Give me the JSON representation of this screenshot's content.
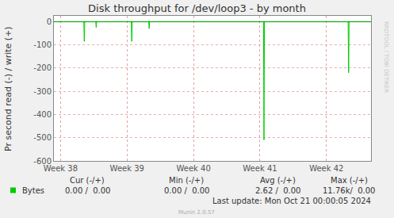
{
  "chart_data": {
    "type": "line",
    "title": "Disk throughput for /dev/loop3 - by month",
    "y_label": "Pr second read (-) / write (+)",
    "x": [
      37.9,
      38.35,
      38.357,
      38.364,
      38.529,
      38.536,
      38.543,
      39.064,
      39.071,
      39.078,
      39.326,
      39.333,
      39.34,
      41.053,
      41.06,
      41.067,
      42.326,
      42.333,
      42.34,
      42.67
    ],
    "series": [
      {
        "name": "Bytes",
        "color": "#00cc00",
        "values": [
          0,
          0,
          -85,
          0,
          0,
          -25,
          0,
          0,
          -85,
          0,
          0,
          -30,
          0,
          0,
          -510,
          0,
          0,
          -220,
          0,
          0
        ]
      }
    ],
    "xlim": [
      37.9,
      42.67
    ],
    "xticks": [
      {
        "value": 38,
        "label": "Week 38"
      },
      {
        "value": 39,
        "label": "Week 39"
      },
      {
        "value": 40,
        "label": "Week 40"
      },
      {
        "value": 41,
        "label": "Week 41"
      },
      {
        "value": 42,
        "label": "Week 42"
      }
    ],
    "ylim": [
      -600,
      25
    ],
    "yticks": [
      0,
      -100,
      -200,
      -300,
      -400,
      -500,
      -600
    ],
    "grid": true,
    "stats_table": {
      "columns": [
        "Cur (-/+)",
        "Min (-/+)",
        "Avg (-/+)",
        "Max (-/+)"
      ],
      "rows": [
        {
          "name": "Bytes",
          "cells": [
            "0.00 /  0.00",
            "0.00 /  0.00",
            "2.62 /  0.00",
            "11.76k/  0.00"
          ]
        }
      ]
    },
    "last_update": "Last update: Mon Oct 21 00:00:05 2024",
    "credit": "Munin 2.0.57",
    "watermark": "RRDTOOL / TOBI OETIKER"
  }
}
